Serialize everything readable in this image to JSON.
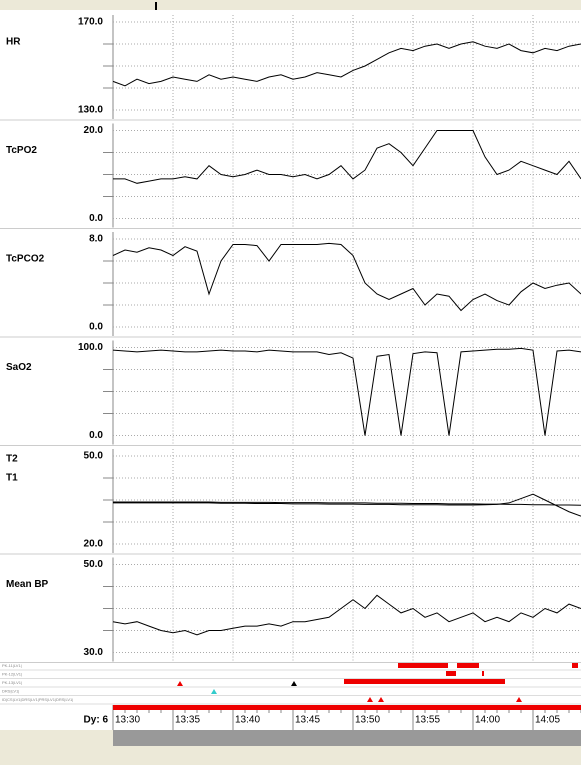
{
  "chart_data": {
    "type": "line",
    "x": [
      "13:30",
      "13:31",
      "13:32",
      "13:33",
      "13:34",
      "13:35",
      "13:36",
      "13:37",
      "13:38",
      "13:39",
      "13:40",
      "13:41",
      "13:42",
      "13:43",
      "13:44",
      "13:45",
      "13:46",
      "13:47",
      "13:48",
      "13:49",
      "13:50",
      "13:51",
      "13:52",
      "13:53",
      "13:54",
      "13:55",
      "13:56",
      "13:57",
      "13:58",
      "13:59",
      "14:00",
      "14:01",
      "14:02",
      "14:03",
      "14:04",
      "14:05",
      "14:06",
      "14:07",
      "14:08",
      "14:09"
    ],
    "xticks": [
      "13:30",
      "13:35",
      "13:40",
      "13:45",
      "13:50",
      "13:55",
      "14:00",
      "14:05"
    ],
    "day_label": "Dy: 6",
    "grid": true,
    "panels": [
      {
        "label": "HR",
        "color": "#000000",
        "ylim": [
          130,
          170
        ],
        "yticks": [
          {
            "value": 170,
            "label": "170.0"
          },
          {
            "value": 130,
            "label": "130.0"
          }
        ],
        "minor_yticks": [
          160,
          150,
          140
        ],
        "values": [
          143,
          141,
          144,
          142,
          143,
          145,
          144,
          143,
          146,
          144,
          145,
          144,
          143,
          145,
          146,
          144,
          145,
          147,
          146,
          145,
          148,
          150,
          153,
          156,
          158,
          157,
          159,
          160,
          158,
          160,
          161,
          159,
          158,
          160,
          157,
          156,
          158,
          157,
          159,
          160
        ]
      },
      {
        "label": "TcPO2",
        "color": "#000000",
        "ylim": [
          0,
          20
        ],
        "yticks": [
          {
            "value": 20,
            "label": "20.0"
          },
          {
            "value": 0,
            "label": "0.0"
          }
        ],
        "minor_yticks": [
          15,
          10,
          5
        ],
        "values": [
          9,
          9,
          8,
          8.5,
          9,
          9,
          9.5,
          9,
          12,
          10,
          9.5,
          10,
          11,
          10,
          10,
          9.5,
          10,
          9,
          10,
          12,
          9,
          11,
          16,
          17,
          15,
          12,
          16,
          20,
          20,
          20,
          20,
          14,
          10,
          11,
          13,
          12,
          11,
          10,
          13,
          9
        ]
      },
      {
        "label": "TcPCO2",
        "color": "#000000",
        "ylim": [
          0,
          8
        ],
        "yticks": [
          {
            "value": 8,
            "label": "8.0"
          },
          {
            "value": 0,
            "label": "0.0"
          }
        ],
        "minor_yticks": [
          6,
          4,
          2
        ],
        "values": [
          6.5,
          7,
          6.8,
          7.2,
          7,
          6.5,
          7.3,
          6.9,
          3,
          6,
          7.5,
          7.5,
          7.4,
          6,
          7.5,
          7.5,
          7.5,
          7.5,
          7.6,
          7.5,
          6.5,
          4,
          3,
          2.5,
          3,
          3.5,
          2,
          3,
          2.8,
          1.5,
          2.5,
          3,
          2.4,
          2,
          3.2,
          4,
          3.5,
          3.8,
          4,
          3
        ]
      },
      {
        "label": "SaO2",
        "color": "#000000",
        "ylim": [
          0,
          100
        ],
        "yticks": [
          {
            "value": 100,
            "label": "100.0"
          },
          {
            "value": 0,
            "label": "0.0"
          }
        ],
        "minor_yticks": [
          75,
          50,
          25
        ],
        "values": [
          97,
          96,
          95,
          96,
          97,
          96,
          95,
          95,
          96,
          97,
          96,
          96,
          95,
          97,
          96,
          95,
          95,
          95,
          92,
          94,
          88,
          0,
          90,
          92,
          0,
          93,
          95,
          94,
          0,
          95,
          96,
          97,
          98,
          98,
          99,
          97,
          0,
          96,
          97,
          95
        ]
      },
      {
        "color": "#000000",
        "ylim": [
          20,
          50
        ],
        "yticks": [
          {
            "value": 50,
            "label": "50.0"
          },
          {
            "value": 20,
            "label": "20.0"
          }
        ],
        "minor_yticks": [
          42.5,
          35,
          27.5
        ],
        "series": [
          {
            "name": "T2",
            "color": "#000000",
            "values": [
              34,
              34,
              34,
              34,
              34,
              34,
              34,
              34,
              34,
              33.9,
              33.9,
              33.9,
              33.8,
              33.8,
              33.8,
              33.7,
              33.7,
              33.7,
              33.6,
              33.6,
              33.6,
              33.5,
              33.5,
              33.5,
              33.4,
              33.4,
              33.4,
              33.4,
              33.3,
              33.3,
              33.3,
              33.4,
              33.5,
              34,
              35.5,
              37,
              35,
              33,
              31,
              29.5
            ]
          },
          {
            "name": "T1",
            "color": "#000000",
            "values": [
              34.3,
              34.3,
              34.3,
              34.3,
              34.3,
              34.3,
              34.3,
              34.3,
              34.3,
              34.2,
              34.2,
              34.2,
              34.2,
              34.2,
              34.1,
              34.1,
              34.1,
              34.1,
              34,
              34,
              34,
              34,
              33.9,
              33.9,
              33.9,
              33.8,
              33.8,
              33.8,
              33.7,
              33.7,
              33.7,
              33.6,
              33.6,
              33.5,
              33.5,
              33.4,
              33.4,
              33.3,
              33.3,
              33.2
            ]
          }
        ]
      },
      {
        "label": "Mean BP",
        "color": "#000000",
        "ylim": [
          30,
          50
        ],
        "yticks": [
          {
            "value": 50,
            "label": "50.0"
          },
          {
            "value": 30,
            "label": "30.0"
          }
        ],
        "minor_yticks": [
          45,
          40,
          35
        ],
        "values": [
          37,
          36.5,
          37,
          36,
          35,
          34.5,
          35,
          34,
          35,
          35,
          35.5,
          36,
          36,
          36.5,
          36,
          37,
          37,
          37.5,
          38,
          40,
          42,
          40,
          43,
          41,
          39,
          40,
          38,
          39,
          37,
          38,
          39,
          37,
          38,
          37,
          39,
          38,
          40,
          39,
          41,
          40
        ]
      }
    ],
    "event_rows": [
      "PK-11|LV1|",
      "PK-12|LV1|",
      "PK-13|LV1|",
      "DRS|LV1|",
      "ID|CS|LV1|DRS|LV1|PRS|LV1|DRS|LV1|"
    ]
  }
}
